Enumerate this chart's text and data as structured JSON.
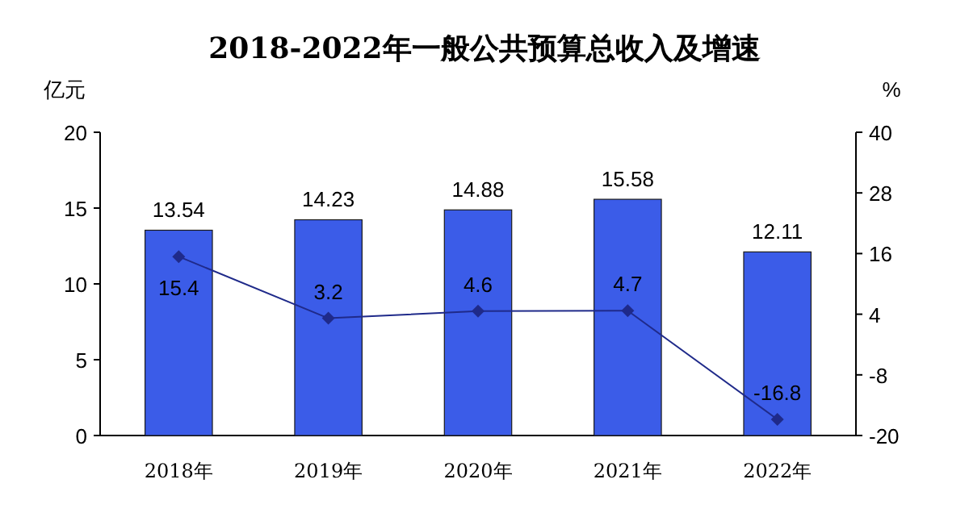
{
  "chart_data": {
    "type": "bar",
    "title": "2018-2022年一般公共预算总收入及增速",
    "ylabel": "亿元",
    "y2label": "%",
    "categories": [
      "2018年",
      "2019年",
      "2020年",
      "2021年",
      "2022年"
    ],
    "series": [
      {
        "color": "#3b5ce8",
        "values": [
          13.54,
          14.23,
          14.88,
          15.58,
          12.11
        ]
      },
      {
        "type": "line",
        "axis": "y2",
        "color": "#1f2a8a",
        "marker": "diamond",
        "line_style": "solid",
        "values": [
          15.4,
          3.2,
          4.6,
          4.7,
          -16.8
        ]
      }
    ],
    "ylim": [
      0,
      20
    ],
    "yticks": [
      0,
      5,
      10,
      15,
      20
    ],
    "y2lim": [
      -20,
      40
    ],
    "y2ticks": [
      -20,
      -8,
      4,
      16,
      28,
      40
    ],
    "data_labels": true,
    "grid": false
  }
}
